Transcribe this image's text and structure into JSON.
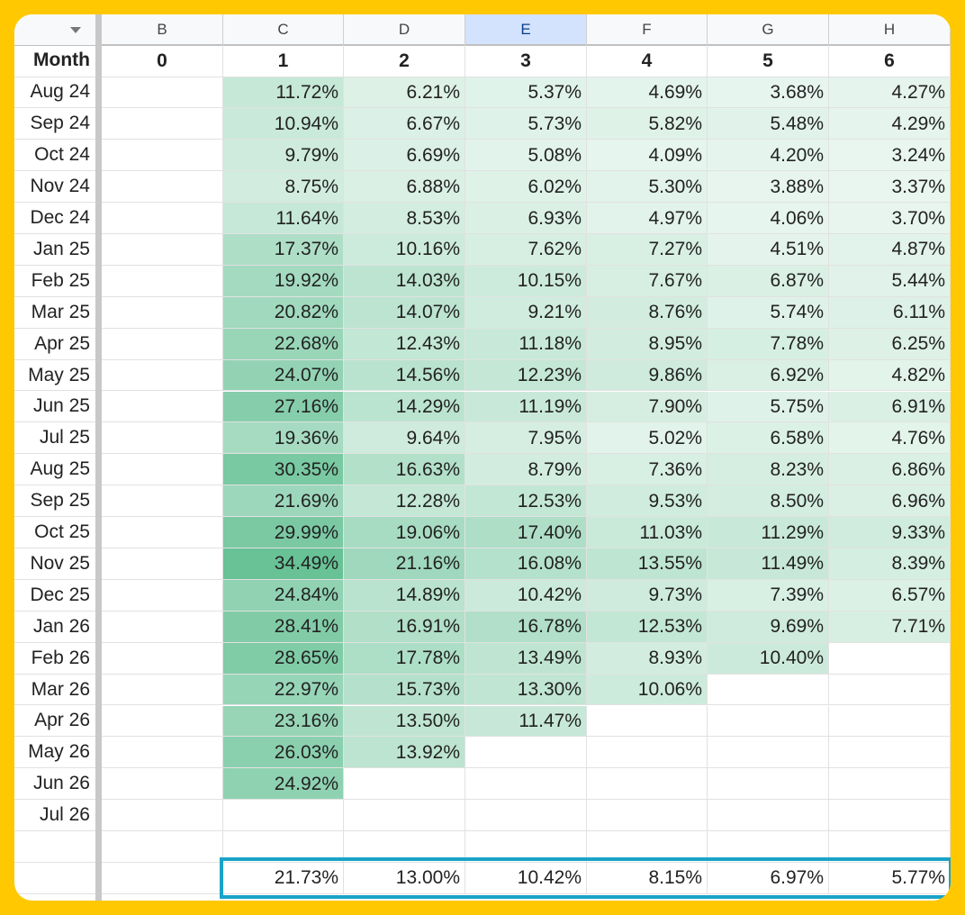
{
  "corner_icon": "dropdown-triangle-icon",
  "column_letters": [
    "B",
    "C",
    "D",
    "E",
    "F",
    "G",
    "H"
  ],
  "selected_column": "E",
  "header_row": {
    "label": "Month",
    "periods": [
      "0",
      "1",
      "2",
      "3",
      "4",
      "5",
      "6"
    ]
  },
  "rows": [
    {
      "month": "Aug 24",
      "values": [
        "",
        "11.72%",
        "6.21%",
        "5.37%",
        "4.69%",
        "3.68%",
        "4.27%"
      ]
    },
    {
      "month": "Sep 24",
      "values": [
        "",
        "10.94%",
        "6.67%",
        "5.73%",
        "5.82%",
        "5.48%",
        "4.29%"
      ]
    },
    {
      "month": "Oct 24",
      "values": [
        "",
        "9.79%",
        "6.69%",
        "5.08%",
        "4.09%",
        "4.20%",
        "3.24%"
      ]
    },
    {
      "month": "Nov 24",
      "values": [
        "",
        "8.75%",
        "6.88%",
        "6.02%",
        "5.30%",
        "3.88%",
        "3.37%"
      ]
    },
    {
      "month": "Dec 24",
      "values": [
        "",
        "11.64%",
        "8.53%",
        "6.93%",
        "4.97%",
        "4.06%",
        "3.70%"
      ]
    },
    {
      "month": "Jan 25",
      "values": [
        "",
        "17.37%",
        "10.16%",
        "7.62%",
        "7.27%",
        "4.51%",
        "4.87%"
      ]
    },
    {
      "month": "Feb 25",
      "values": [
        "",
        "19.92%",
        "14.03%",
        "10.15%",
        "7.67%",
        "6.87%",
        "5.44%"
      ]
    },
    {
      "month": "Mar 25",
      "values": [
        "",
        "20.82%",
        "14.07%",
        "9.21%",
        "8.76%",
        "5.74%",
        "6.11%"
      ]
    },
    {
      "month": "Apr 25",
      "values": [
        "",
        "22.68%",
        "12.43%",
        "11.18%",
        "8.95%",
        "7.78%",
        "6.25%"
      ]
    },
    {
      "month": "May 25",
      "values": [
        "",
        "24.07%",
        "14.56%",
        "12.23%",
        "9.86%",
        "6.92%",
        "4.82%"
      ]
    },
    {
      "month": "Jun 25",
      "values": [
        "",
        "27.16%",
        "14.29%",
        "11.19%",
        "7.90%",
        "5.75%",
        "6.91%"
      ]
    },
    {
      "month": "Jul 25",
      "values": [
        "",
        "19.36%",
        "9.64%",
        "7.95%",
        "5.02%",
        "6.58%",
        "4.76%"
      ]
    },
    {
      "month": "Aug 25",
      "values": [
        "",
        "30.35%",
        "16.63%",
        "8.79%",
        "7.36%",
        "8.23%",
        "6.86%"
      ]
    },
    {
      "month": "Sep 25",
      "values": [
        "",
        "21.69%",
        "12.28%",
        "12.53%",
        "9.53%",
        "8.50%",
        "6.96%"
      ]
    },
    {
      "month": "Oct 25",
      "values": [
        "",
        "29.99%",
        "19.06%",
        "17.40%",
        "11.03%",
        "11.29%",
        "9.33%"
      ]
    },
    {
      "month": "Nov 25",
      "values": [
        "",
        "34.49%",
        "21.16%",
        "16.08%",
        "13.55%",
        "11.49%",
        "8.39%"
      ]
    },
    {
      "month": "Dec 25",
      "values": [
        "",
        "24.84%",
        "14.89%",
        "10.42%",
        "9.73%",
        "7.39%",
        "6.57%"
      ]
    },
    {
      "month": "Jan 26",
      "values": [
        "",
        "28.41%",
        "16.91%",
        "16.78%",
        "12.53%",
        "9.69%",
        "7.71%"
      ]
    },
    {
      "month": "Feb 26",
      "values": [
        "",
        "28.65%",
        "17.78%",
        "13.49%",
        "8.93%",
        "10.40%",
        ""
      ]
    },
    {
      "month": "Mar 26",
      "values": [
        "",
        "22.97%",
        "15.73%",
        "13.30%",
        "10.06%",
        "",
        ""
      ]
    },
    {
      "month": "Apr 26",
      "values": [
        "",
        "23.16%",
        "13.50%",
        "11.47%",
        "",
        "",
        ""
      ]
    },
    {
      "month": "May 26",
      "values": [
        "",
        "26.03%",
        "13.92%",
        "",
        "",
        "",
        ""
      ]
    },
    {
      "month": "Jun 26",
      "values": [
        "",
        "24.92%",
        "",
        "",
        "",
        "",
        ""
      ]
    },
    {
      "month": "Jul 26",
      "values": [
        "",
        "",
        "",
        "",
        "",
        "",
        ""
      ]
    },
    {
      "month": "",
      "values": [
        "",
        "",
        "",
        "",
        "",
        "",
        ""
      ]
    }
  ],
  "summary_row": {
    "month": "",
    "values": [
      "",
      "21.73%",
      "13.00%",
      "10.42%",
      "8.15%",
      "6.97%",
      "5.77%"
    ]
  },
  "heatmap": {
    "low_color": "#ffffff",
    "high_color": "#57bb8a",
    "max_value": 34.49
  }
}
